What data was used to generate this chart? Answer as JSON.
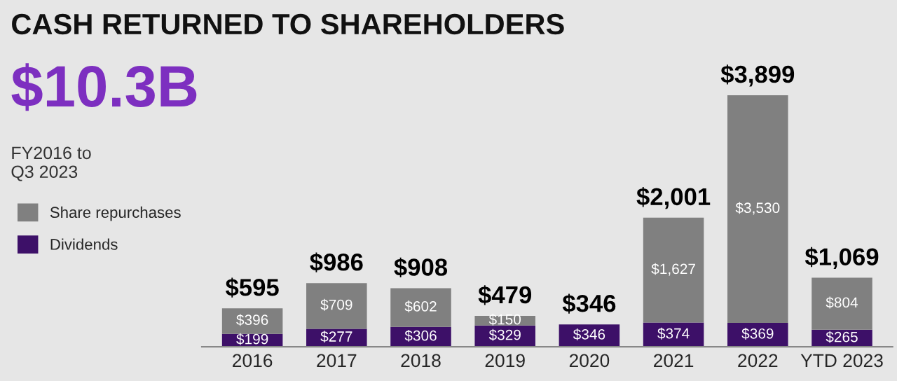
{
  "chart_data": {
    "type": "bar",
    "title": "CASH RETURNED TO SHAREHOLDERS",
    "annotations": [
      "$10.3B",
      "FY2016 to\nQ3 2023"
    ],
    "categories": [
      "2016",
      "2017",
      "2018",
      "2019",
      "2020",
      "2021",
      "2022",
      "YTD 2023"
    ],
    "stacked": true,
    "series": [
      {
        "name": "Dividends",
        "color": "#3d1068",
        "values": [
          199,
          277,
          306,
          329,
          346,
          374,
          369,
          265
        ],
        "value_labels": [
          "$199",
          "$277",
          "$306",
          "$329",
          "$346",
          "$374",
          "$369",
          "$265"
        ]
      },
      {
        "name": "Share repurchases",
        "color": "#808080",
        "values": [
          396,
          709,
          602,
          150,
          null,
          1627,
          3530,
          804
        ],
        "value_labels": [
          "$396",
          "$709",
          "$602",
          "$150",
          null,
          "$1,627",
          "$3,530",
          "$804"
        ]
      }
    ],
    "totals": [
      "$595",
      "$986",
      "$908",
      "$479",
      "$346",
      "$2,001",
      "$3,899",
      "$1,069"
    ],
    "tick_labels": "x",
    "grid": false,
    "legend": "left"
  }
}
